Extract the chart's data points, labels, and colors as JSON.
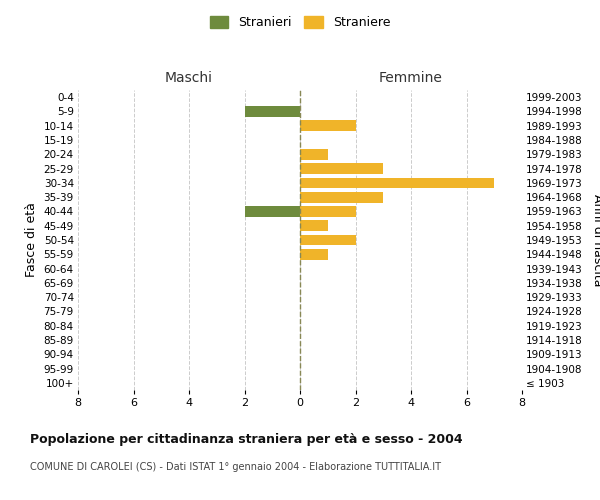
{
  "age_groups": [
    "100+",
    "95-99",
    "90-94",
    "85-89",
    "80-84",
    "75-79",
    "70-74",
    "65-69",
    "60-64",
    "55-59",
    "50-54",
    "45-49",
    "40-44",
    "35-39",
    "30-34",
    "25-29",
    "20-24",
    "15-19",
    "10-14",
    "5-9",
    "0-4"
  ],
  "birth_years": [
    "≤ 1903",
    "1904-1908",
    "1909-1913",
    "1914-1918",
    "1919-1923",
    "1924-1928",
    "1929-1933",
    "1934-1938",
    "1939-1943",
    "1944-1948",
    "1949-1953",
    "1954-1958",
    "1959-1963",
    "1964-1968",
    "1969-1973",
    "1974-1978",
    "1979-1983",
    "1984-1988",
    "1989-1993",
    "1994-1998",
    "1999-2003"
  ],
  "maschi": [
    0,
    0,
    0,
    0,
    0,
    0,
    0,
    0,
    0,
    0,
    0,
    0,
    2,
    0,
    0,
    0,
    0,
    0,
    0,
    2,
    0
  ],
  "femmine": [
    0,
    0,
    0,
    0,
    0,
    0,
    0,
    0,
    0,
    1,
    2,
    1,
    2,
    3,
    7,
    3,
    1,
    0,
    2,
    0,
    0
  ],
  "color_maschi": "#6e8b3d",
  "color_femmine": "#f0b429",
  "xlim": 8,
  "title": "Popolazione per cittadinanza straniera per età e sesso - 2004",
  "subtitle": "COMUNE DI CAROLEI (CS) - Dati ISTAT 1° gennaio 2004 - Elaborazione TUTTITALIA.IT",
  "ylabel_left": "Fasce di età",
  "ylabel_right": "Anni di nascita",
  "label_maschi": "Stranieri",
  "label_femmine": "Straniere",
  "header_left": "Maschi",
  "header_right": "Femmine",
  "bg_color": "#ffffff",
  "grid_color": "#cccccc"
}
